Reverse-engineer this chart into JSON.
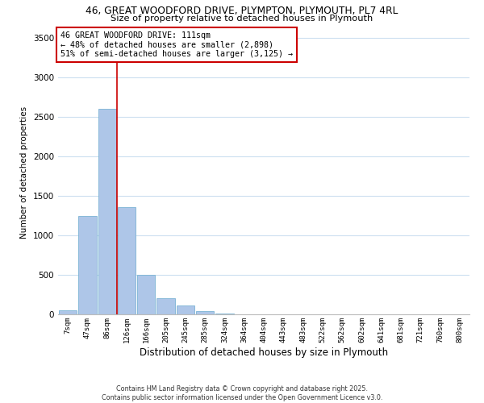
{
  "title_line1": "46, GREAT WOODFORD DRIVE, PLYMPTON, PLYMOUTH, PL7 4RL",
  "title_line2": "Size of property relative to detached houses in Plymouth",
  "xlabel": "Distribution of detached houses by size in Plymouth",
  "ylabel": "Number of detached properties",
  "bar_labels": [
    "7sqm",
    "47sqm",
    "86sqm",
    "126sqm",
    "166sqm",
    "205sqm",
    "245sqm",
    "285sqm",
    "324sqm",
    "364sqm",
    "404sqm",
    "443sqm",
    "483sqm",
    "522sqm",
    "562sqm",
    "602sqm",
    "641sqm",
    "681sqm",
    "721sqm",
    "760sqm",
    "800sqm"
  ],
  "bar_values": [
    50,
    1250,
    2600,
    1360,
    500,
    200,
    110,
    45,
    10,
    5,
    2,
    1,
    0,
    0,
    0,
    0,
    0,
    0,
    0,
    0,
    0
  ],
  "bar_color": "#aec6e8",
  "bar_edge_color": "#7ab3d4",
  "vline_color": "#cc0000",
  "vline_x": 2.5,
  "annotation_title": "46 GREAT WOODFORD DRIVE: 111sqm",
  "annotation_line2": "← 48% of detached houses are smaller (2,898)",
  "annotation_line3": "51% of semi-detached houses are larger (3,125) →",
  "annotation_box_color": "#ffffff",
  "annotation_box_edge": "#cc0000",
  "ylim": [
    0,
    3600
  ],
  "yticks": [
    0,
    500,
    1000,
    1500,
    2000,
    2500,
    3000,
    3500
  ],
  "background_color": "#ffffff",
  "grid_color": "#ccdff0",
  "footnote_line1": "Contains HM Land Registry data © Crown copyright and database right 2025.",
  "footnote_line2": "Contains public sector information licensed under the Open Government Licence v3.0."
}
